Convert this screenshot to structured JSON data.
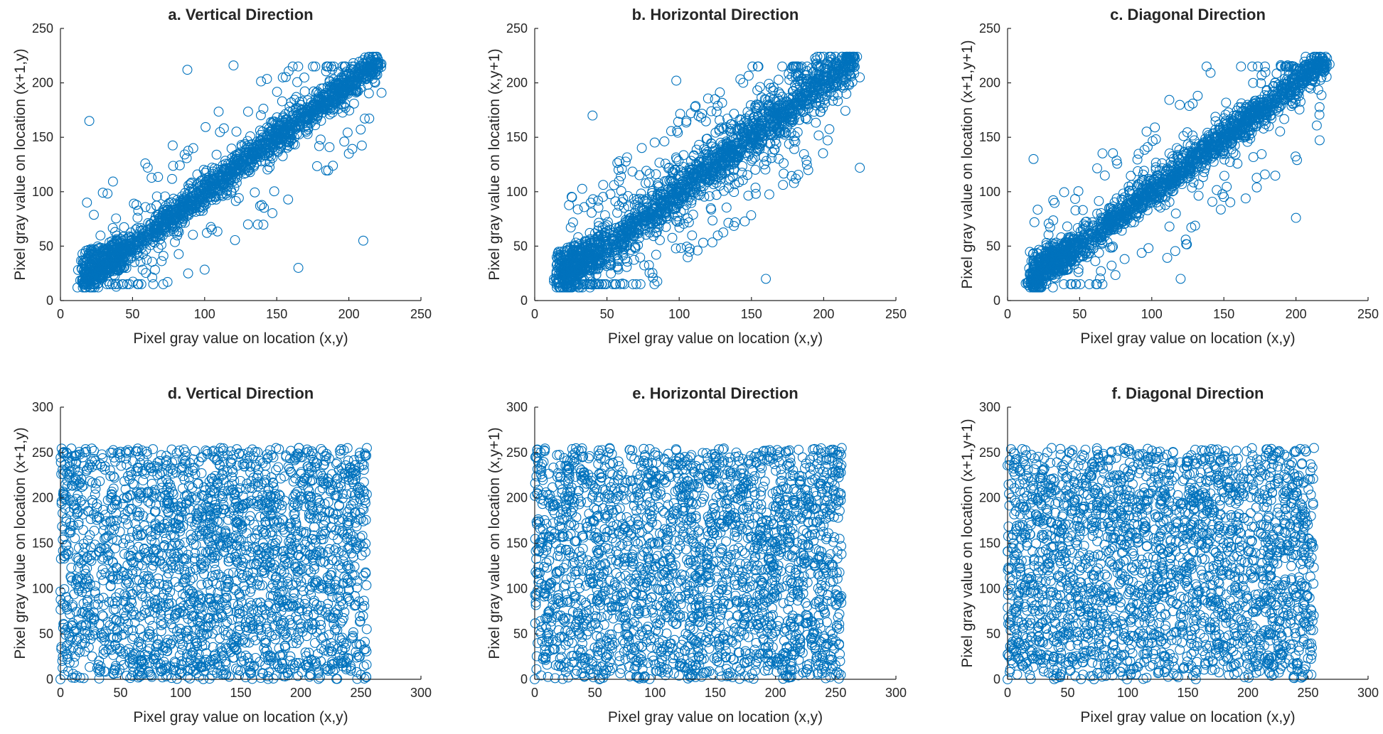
{
  "figure": {
    "marker_color": "#0072BD",
    "axis_color": "#262626",
    "marker": "open-circle"
  },
  "chart_data": [
    {
      "type": "scatter",
      "id": "a",
      "title": "a. Vertical Direction",
      "xlabel": "Pixel gray value on location (x,y)",
      "ylabel": "Pixel gray value on location (x+1,y)",
      "xlim": [
        0,
        250
      ],
      "ylim": [
        0,
        250
      ],
      "xticks": [
        0,
        50,
        100,
        150,
        200,
        250
      ],
      "yticks": [
        0,
        50,
        100,
        150,
        200,
        250
      ],
      "grid": false,
      "pattern": "strong positive correlation along y = x, dense between 20 and 220",
      "series": [
        {
          "x": [
            15,
            25,
            40,
            60,
            80,
            100,
            120,
            140,
            160,
            180,
            200,
            215,
            20,
            88,
            120,
            210,
            200,
            165
          ],
          "y": [
            18,
            28,
            42,
            58,
            82,
            98,
            122,
            138,
            162,
            178,
            202,
            212,
            165,
            212,
            216,
            55,
            135,
            30
          ]
        }
      ]
    },
    {
      "type": "scatter",
      "id": "b",
      "title": "b. Horizontal Direction",
      "xlabel": "Pixel gray value on location (x,y)",
      "ylabel": "Pixel gray value on location (x,y+1)",
      "xlim": [
        0,
        250
      ],
      "ylim": [
        0,
        250
      ],
      "xticks": [
        0,
        50,
        100,
        150,
        200,
        250
      ],
      "yticks": [
        0,
        50,
        100,
        150,
        200,
        250
      ],
      "grid": false,
      "pattern": "positive correlation along y = x with wider spread",
      "series": [
        {
          "x": [
            15,
            30,
            50,
            70,
            90,
            110,
            130,
            150,
            170,
            190,
            210,
            225,
            98,
            225,
            40,
            160
          ],
          "y": [
            15,
            32,
            48,
            72,
            88,
            112,
            128,
            152,
            168,
            192,
            208,
            205,
            202,
            122,
            170,
            20
          ]
        }
      ]
    },
    {
      "type": "scatter",
      "id": "c",
      "title": "c. Diagonal Direction",
      "xlabel": "Pixel gray value on location (x,y)",
      "ylabel": "Pixel gray value on location (x+1,y+1)",
      "xlim": [
        0,
        250
      ],
      "ylim": [
        0,
        250
      ],
      "xticks": [
        0,
        50,
        100,
        150,
        200,
        250
      ],
      "yticks": [
        0,
        50,
        100,
        150,
        200,
        250
      ],
      "grid": false,
      "pattern": "strong positive correlation along y = x",
      "series": [
        {
          "x": [
            15,
            30,
            50,
            70,
            90,
            110,
            130,
            150,
            170,
            190,
            210,
            220,
            18,
            138,
            200,
            120
          ],
          "y": [
            18,
            30,
            52,
            70,
            92,
            108,
            132,
            150,
            168,
            190,
            210,
            215,
            130,
            215,
            76,
            20
          ]
        }
      ]
    },
    {
      "type": "scatter",
      "id": "d",
      "title": "d. Vertical Direction",
      "xlabel": "Pixel gray value on location (x,y)",
      "ylabel": "Pixel gray value on location (x+1,y)",
      "xlim": [
        0,
        300
      ],
      "ylim": [
        0,
        300
      ],
      "xticks": [
        0,
        50,
        100,
        150,
        200,
        250,
        300
      ],
      "yticks": [
        0,
        50,
        100,
        150,
        200,
        250,
        300
      ],
      "grid": false,
      "pattern": "uniform scatter over [0,255] x [0,255], no correlation",
      "series": [
        {
          "x": [
            0,
            255,
            128,
            5,
            250,
            60,
            190
          ],
          "y": [
            0,
            255,
            128,
            250,
            5,
            120,
            80
          ]
        }
      ]
    },
    {
      "type": "scatter",
      "id": "e",
      "title": "e. Horizontal Direction",
      "xlabel": "Pixel gray value on location (x,y)",
      "ylabel": "Pixel gray value on location (x,y+1)",
      "xlim": [
        0,
        300
      ],
      "ylim": [
        0,
        300
      ],
      "xticks": [
        0,
        50,
        100,
        150,
        200,
        250,
        300
      ],
      "yticks": [
        0,
        50,
        100,
        150,
        200,
        250,
        300
      ],
      "grid": false,
      "pattern": "uniform scatter over [0,255] x [0,255], no correlation",
      "series": [
        {
          "x": [
            0,
            255,
            128,
            5,
            250,
            60,
            190
          ],
          "y": [
            0,
            255,
            128,
            250,
            5,
            120,
            80
          ]
        }
      ]
    },
    {
      "type": "scatter",
      "id": "f",
      "title": "f. Diagonal Direction",
      "xlabel": "Pixel gray value on location (x,y)",
      "ylabel": "Pixel gray value on location (x+1,y+1)",
      "xlim": [
        0,
        300
      ],
      "ylim": [
        0,
        300
      ],
      "xticks": [
        0,
        50,
        100,
        150,
        200,
        250,
        300
      ],
      "yticks": [
        0,
        50,
        100,
        150,
        200,
        250,
        300
      ],
      "grid": false,
      "pattern": "uniform scatter over [0,255] x [0,255], no correlation",
      "series": [
        {
          "x": [
            0,
            255,
            128,
            5,
            250,
            60,
            190
          ],
          "y": [
            0,
            255,
            128,
            250,
            5,
            120,
            80
          ]
        }
      ]
    }
  ]
}
